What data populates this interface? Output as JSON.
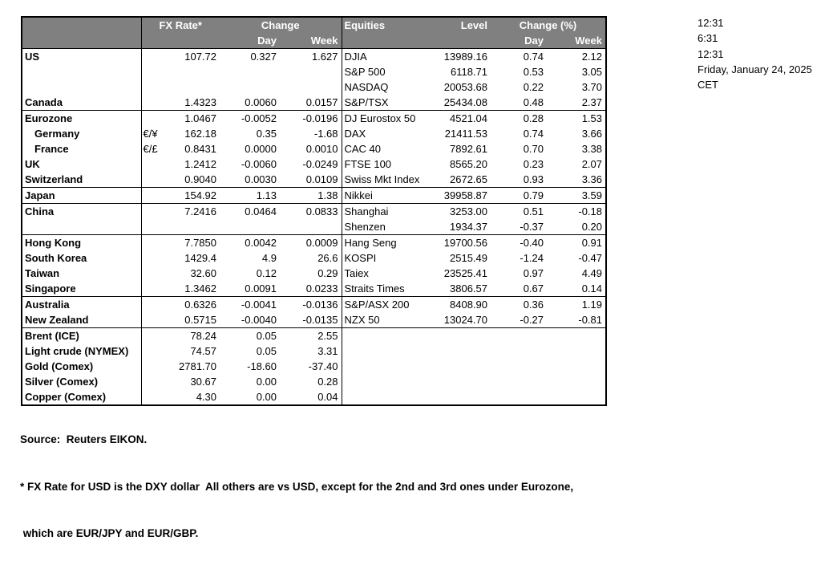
{
  "colors": {
    "header_bg": "#808080",
    "header_text": "#ffffff",
    "border": "#000000"
  },
  "header": {
    "fx_rate": "FX Rate*",
    "change": "Change",
    "day": "Day",
    "week": "Week",
    "equities": "Equities",
    "level": "Level",
    "change_pct": "Change (%)",
    "eq_day": "Day",
    "eq_week": "Week"
  },
  "rows": [
    {
      "label": "US",
      "pair": "",
      "fx": "107.72",
      "fx_day": "0.327",
      "fx_week": "1.627",
      "equity": "DJIA",
      "level": "13989.16",
      "eq_day": "0.74",
      "eq_week": "2.12",
      "indent": false,
      "section_end": false
    },
    {
      "label": "",
      "pair": "",
      "fx": "",
      "fx_day": "",
      "fx_week": "",
      "equity": "S&P 500",
      "level": "6118.71",
      "eq_day": "0.53",
      "eq_week": "3.05",
      "indent": false,
      "section_end": false
    },
    {
      "label": "",
      "pair": "",
      "fx": "",
      "fx_day": "",
      "fx_week": "",
      "equity": "NASDAQ",
      "level": "20053.68",
      "eq_day": "0.22",
      "eq_week": "3.70",
      "indent": false,
      "section_end": false
    },
    {
      "label": "Canada",
      "pair": "",
      "fx": "1.4323",
      "fx_day": "0.0060",
      "fx_week": "0.0157",
      "equity": "S&P/TSX",
      "level": "25434.08",
      "eq_day": "0.48",
      "eq_week": "2.37",
      "indent": false,
      "section_end": true
    },
    {
      "label": "Eurozone",
      "pair": "",
      "fx": "1.0467",
      "fx_day": "-0.0052",
      "fx_week": "-0.0196",
      "equity": "DJ Eurostox 50",
      "level": "4521.04",
      "eq_day": "0.28",
      "eq_week": "1.53",
      "indent": false,
      "section_end": false
    },
    {
      "label": "Germany",
      "pair": "€/¥",
      "fx": "162.18",
      "fx_day": "0.35",
      "fx_week": "-1.68",
      "equity": "DAX",
      "level": "21411.53",
      "eq_day": "0.74",
      "eq_week": "3.66",
      "indent": true,
      "section_end": false
    },
    {
      "label": "France",
      "pair": "€/£",
      "fx": "0.8431",
      "fx_day": "0.0000",
      "fx_week": "0.0010",
      "equity": "CAC 40",
      "level": "7892.61",
      "eq_day": "0.70",
      "eq_week": "3.38",
      "indent": true,
      "section_end": false
    },
    {
      "label": "UK",
      "pair": "",
      "fx": "1.2412",
      "fx_day": "-0.0060",
      "fx_week": "-0.0249",
      "equity": "FTSE 100",
      "level": "8565.20",
      "eq_day": "0.23",
      "eq_week": "2.07",
      "indent": false,
      "section_end": false
    },
    {
      "label": "Switzerland",
      "pair": "",
      "fx": "0.9040",
      "fx_day": "0.0030",
      "fx_week": "0.0109",
      "equity": "Swiss Mkt Index",
      "level": "2672.65",
      "eq_day": "0.93",
      "eq_week": "3.36",
      "indent": false,
      "section_end": true
    },
    {
      "label": "Japan",
      "pair": "",
      "fx": "154.92",
      "fx_day": "1.13",
      "fx_week": "1.38",
      "equity": "Nikkei",
      "level": "39958.87",
      "eq_day": "0.79",
      "eq_week": "3.59",
      "indent": false,
      "section_end": true
    },
    {
      "label": "China",
      "pair": "",
      "fx": "7.2416",
      "fx_day": "0.0464",
      "fx_week": "0.0833",
      "equity": "Shanghai",
      "level": "3253.00",
      "eq_day": "0.51",
      "eq_week": "-0.18",
      "indent": false,
      "section_end": false
    },
    {
      "label": "",
      "pair": "",
      "fx": "",
      "fx_day": "",
      "fx_week": "",
      "equity": "Shenzen",
      "level": "1934.37",
      "eq_day": "-0.37",
      "eq_week": "0.20",
      "indent": false,
      "section_end": true
    },
    {
      "label": "Hong Kong",
      "pair": "",
      "fx": "7.7850",
      "fx_day": "0.0042",
      "fx_week": "0.0009",
      "equity": "Hang Seng",
      "level": "19700.56",
      "eq_day": "-0.40",
      "eq_week": "0.91",
      "indent": false,
      "section_end": false
    },
    {
      "label": "South Korea",
      "pair": "",
      "fx": "1429.4",
      "fx_day": "4.9",
      "fx_week": "26.6",
      "equity": "KOSPI",
      "level": "2515.49",
      "eq_day": "-1.24",
      "eq_week": "-0.47",
      "indent": false,
      "section_end": false
    },
    {
      "label": "Taiwan",
      "pair": "",
      "fx": "32.60",
      "fx_day": "0.12",
      "fx_week": "0.29",
      "equity": "Taiex",
      "level": "23525.41",
      "eq_day": "0.97",
      "eq_week": "4.49",
      "indent": false,
      "section_end": false
    },
    {
      "label": "Singapore",
      "pair": "",
      "fx": "1.3462",
      "fx_day": "0.0091",
      "fx_week": "0.0233",
      "equity": "Straits Times",
      "level": "3806.57",
      "eq_day": "0.67",
      "eq_week": "0.14",
      "indent": false,
      "section_end": true
    },
    {
      "label": "Australia",
      "pair": "",
      "fx": "0.6326",
      "fx_day": "-0.0041",
      "fx_week": "-0.0136",
      "equity": "S&P/ASX  200",
      "level": "8408.90",
      "eq_day": "0.36",
      "eq_week": "1.19",
      "indent": false,
      "section_end": false
    },
    {
      "label": "New Zealand",
      "pair": "",
      "fx": "0.5715",
      "fx_day": "-0.0040",
      "fx_week": "-0.0135",
      "equity": "NZX 50",
      "level": "13024.70",
      "eq_day": "-0.27",
      "eq_week": "-0.81",
      "indent": false,
      "section_end": true
    },
    {
      "label": "Brent (ICE)",
      "pair": "",
      "fx": "78.24",
      "fx_day": "0.05",
      "fx_week": "2.55",
      "equity": "",
      "level": "",
      "eq_day": "",
      "eq_week": "",
      "indent": false,
      "section_end": false
    },
    {
      "label": "Light crude (NYMEX)",
      "pair": "",
      "fx": "74.57",
      "fx_day": "0.05",
      "fx_week": "3.31",
      "equity": "",
      "level": "",
      "eq_day": "",
      "eq_week": "",
      "indent": false,
      "section_end": false
    },
    {
      "label": "Gold (Comex)",
      "pair": "",
      "fx": "2781.70",
      "fx_day": "-18.60",
      "fx_week": "-37.40",
      "equity": "",
      "level": "",
      "eq_day": "",
      "eq_week": "",
      "indent": false,
      "section_end": false
    },
    {
      "label": "Silver (Comex)",
      "pair": "",
      "fx": "30.67",
      "fx_day": "0.00",
      "fx_week": "0.28",
      "equity": "",
      "level": "",
      "eq_day": "",
      "eq_week": "",
      "indent": false,
      "section_end": false
    },
    {
      "label": "Copper (Comex)",
      "pair": "",
      "fx": "4.30",
      "fx_day": "0.00",
      "fx_week": "0.04",
      "equity": "",
      "level": "",
      "eq_day": "",
      "eq_week": "",
      "indent": false,
      "section_end": false
    }
  ],
  "timestamps": [
    "12:31",
    "6:31",
    "12:31",
    "Friday, January 24, 2025",
    "CET"
  ],
  "footer": {
    "source": "Source:  Reuters EIKON.",
    "note1": "* FX Rate for USD is the DXY dollar  All others are vs USD, except for the 2nd and 3rd ones under Eurozone,",
    "note2": " which are EUR/JPY and EUR/GBP."
  }
}
